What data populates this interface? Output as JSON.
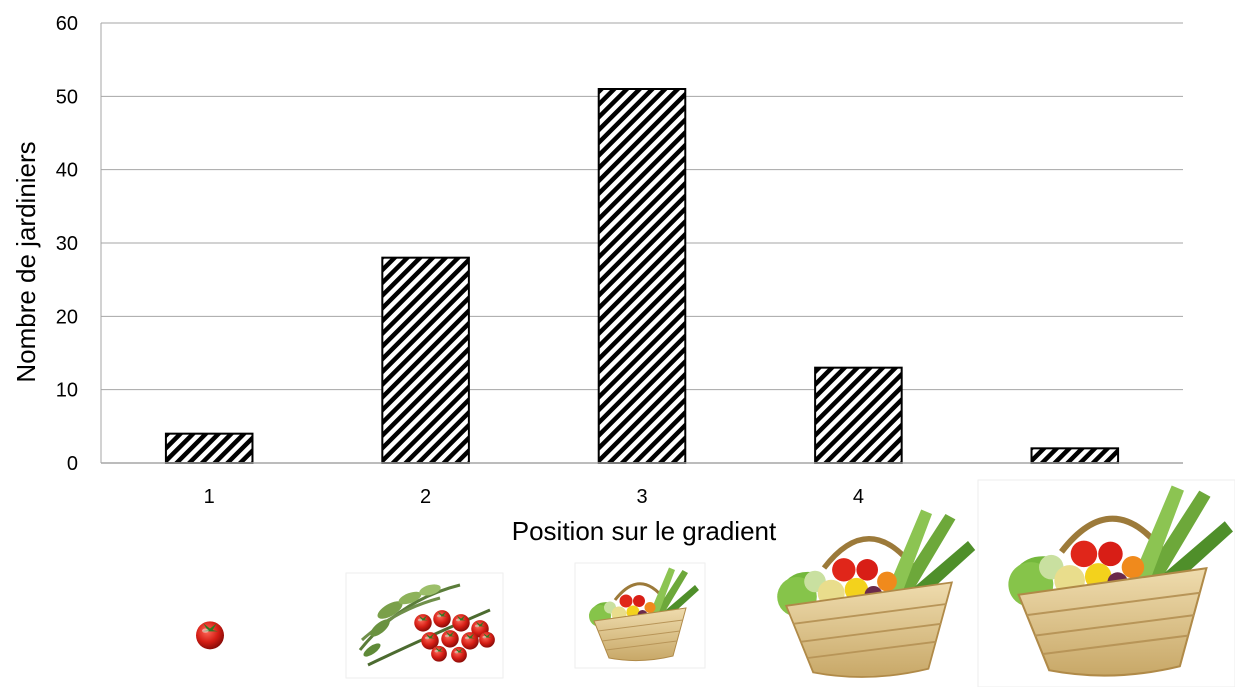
{
  "chart_data": {
    "type": "bar",
    "categories": [
      "1",
      "2",
      "3",
      "4",
      "5"
    ],
    "values": [
      4,
      28,
      51,
      13,
      2
    ],
    "xlabel": "Position sur le gradient",
    "ylabel": "Nombre de jardiniers",
    "ylim": [
      0,
      60
    ],
    "yticks": [
      0,
      10,
      20,
      30,
      40,
      50,
      60
    ],
    "grid": true,
    "bar_fill": "diagonal-hatch",
    "colors": {
      "bar_stroke": "#000000",
      "hatch": "#000000",
      "grid": "#a6a6a6"
    }
  },
  "illustrations": [
    {
      "category": "1",
      "icon": "tomato-icon"
    },
    {
      "category": "2",
      "icon": "herbs-and-tomatoes-icon"
    },
    {
      "category": "3",
      "icon": "small-vegetable-basket-icon"
    },
    {
      "category": "4",
      "icon": "medium-vegetable-basket-icon"
    },
    {
      "category": "5",
      "icon": "large-vegetable-basket-icon"
    }
  ]
}
